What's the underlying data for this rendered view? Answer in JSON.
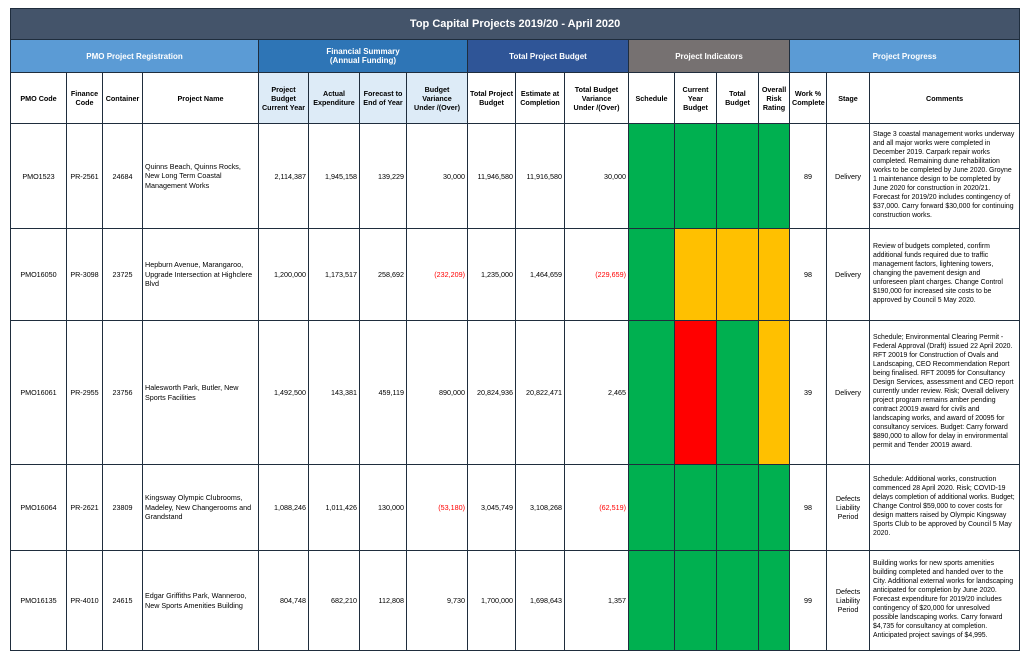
{
  "title": "Top Capital Projects 2019/20 - April 2020",
  "groups": {
    "registration": "PMO Project Registration",
    "financial_line1": "Financial Summary",
    "financial_line2": "(Annual Funding)",
    "total_budget": "Total Project Budget",
    "indicators": "Project Indicators",
    "progress": "Project Progress"
  },
  "columns": {
    "pmo_code": "PMO Code",
    "finance_code_1": "Finance",
    "finance_code_2": "Code",
    "container": "Container",
    "project_name": "Project Name",
    "project_budget_1": "Project",
    "project_budget_2": "Budget",
    "project_budget_3": "Current Year",
    "actual_1": "Actual",
    "actual_2": "Expenditure",
    "forecast_1": "Forecast to",
    "forecast_2": "End of Year",
    "budget_var_1": "Budget Variance",
    "budget_var_2": "Under /(Over)",
    "total_proj_1": "Total Project",
    "total_proj_2": "Budget",
    "estimate_1": "Estimate at",
    "estimate_2": "Completion",
    "total_var_1": "Total Budget",
    "total_var_2": "Variance",
    "total_var_3": "Under /(Over)",
    "schedule": "Schedule",
    "current_year_1": "Current",
    "current_year_2": "Year",
    "current_year_3": "Budget",
    "total_budget_1": "Total",
    "total_budget_2": "Budget",
    "overall_1": "Overall",
    "overall_2": "Risk",
    "overall_3": "Rating",
    "work_1": "Work %",
    "work_2": "Complete",
    "stage": "Stage",
    "comments": "Comments"
  },
  "indicator_colors": {
    "green": "#00b050",
    "amber": "#ffc000",
    "red": "#ff0000"
  },
  "rows": [
    {
      "pmo_code": "PMO1523",
      "finance_code": "PR-2561",
      "container": "24684",
      "project_name": "Quinns Beach, Quinns Rocks, New Long Term Coastal Management Works",
      "project_budget": "2,114,387",
      "actual": "1,945,158",
      "forecast": "139,229",
      "budget_variance": "30,000",
      "total_budget": "11,946,580",
      "estimate": "11,916,580",
      "total_variance": "30,000",
      "schedule": "green",
      "current_year_budget": "green",
      "total_budget_rating": "green",
      "overall_risk": "green",
      "work_complete": "89",
      "stage": "Delivery",
      "comments": "Stage 3 coastal management works underway and all major works were completed in December 2019. Carpark repair works completed. Remaining dune rehabilitation works to be completed by June 2020. Groyne 1 maintenance design to be completed by June 2020 for construction in 2020/21. Forecast for 2019/20 includes contingency of $37,000. Carry forward $30,000 for continuing construction works."
    },
    {
      "pmo_code": "PMO16050",
      "finance_code": "PR-3098",
      "container": "23725",
      "project_name": "Hepburn Avenue, Marangaroo, Upgrade Intersection at Highclere Blvd",
      "project_budget": "1,200,000",
      "actual": "1,173,517",
      "forecast": "258,692",
      "budget_variance": "(232,209)",
      "total_budget": "1,235,000",
      "estimate": "1,464,659",
      "total_variance": "(229,659)",
      "schedule": "green",
      "current_year_budget": "amber",
      "total_budget_rating": "amber",
      "overall_risk": "amber",
      "work_complete": "98",
      "stage": "Delivery",
      "comments": "Review of budgets completed, confirm additional funds required due to traffic management factors, lightening towers, changing the pavement design and unforeseen plant charges. Change Control $190,000 for increased site costs to be approved by Council 5 May 2020."
    },
    {
      "pmo_code": "PMO16061",
      "finance_code": "PR-2955",
      "container": "23756",
      "project_name": "Halesworth Park, Butler, New Sports Facilities",
      "project_budget": "1,492,500",
      "actual": "143,381",
      "forecast": "459,119",
      "budget_variance": "890,000",
      "total_budget": "20,824,936",
      "estimate": "20,822,471",
      "total_variance": "2,465",
      "schedule": "green",
      "current_year_budget": "red",
      "total_budget_rating": "green",
      "overall_risk": "amber",
      "work_complete": "39",
      "stage": "Delivery",
      "comments": "Schedule; Environmental Clearing Permit - Federal Approval (Draft) issued 22 April 2020. RFT 20019 for Construction of Ovals and Landscaping, CEO Recommendation Report being finalised.  RFT 20095 for Consultancy Design Services, assessment and CEO report currently under review. Risk; Overall delivery project program remains amber pending contract 20019 award for civils and landscaping works, and award of 20095 for consultancy services. Budget: Carry forward $890,000 to allow for delay in environmental permit and Tender 20019 award."
    },
    {
      "pmo_code": "PMO16064",
      "finance_code": "PR-2621",
      "container": "23809",
      "project_name": "Kingsway Olympic Clubrooms, Madeley, New Changerooms and Grandstand",
      "project_budget": "1,088,246",
      "actual": "1,011,426",
      "forecast": "130,000",
      "budget_variance": "(53,180)",
      "total_budget": "3,045,749",
      "estimate": "3,108,268",
      "total_variance": "(62,519)",
      "schedule": "green",
      "current_year_budget": "green",
      "total_budget_rating": "green",
      "overall_risk": "green",
      "work_complete": "98",
      "stage": "Defects Liability Period",
      "comments": "Schedule: Additional works, construction commenced 28 April 2020.  Risk; COVID-19 delays completion of additional works. Budget; Change Control $59,000 to cover costs for design matters raised by Olympic Kingsway Sports Club to be approved by Council 5 May 2020."
    },
    {
      "pmo_code": "PMO16135",
      "finance_code": "PR-4010",
      "container": "24615",
      "project_name": "Edgar Griffiths Park, Wanneroo, New Sports Amenities Building",
      "project_budget": "804,748",
      "actual": "682,210",
      "forecast": "112,808",
      "budget_variance": "9,730",
      "total_budget": "1,700,000",
      "estimate": "1,698,643",
      "total_variance": "1,357",
      "schedule": "green",
      "current_year_budget": "green",
      "total_budget_rating": "green",
      "overall_risk": "green",
      "work_complete": "99",
      "stage": "Defects Liability Period",
      "comments": "Building works for new sports amenities building completed and handed over to the City. Additional external works for landscaping anticipated for completion by June 2020. Forecast expenditure for 2019/20 includes contingency of $20,000 for unresolved possible landscaping works. Carry forward $4,735 for consultancy at completion. Anticipated project savings of $4,995."
    }
  ]
}
